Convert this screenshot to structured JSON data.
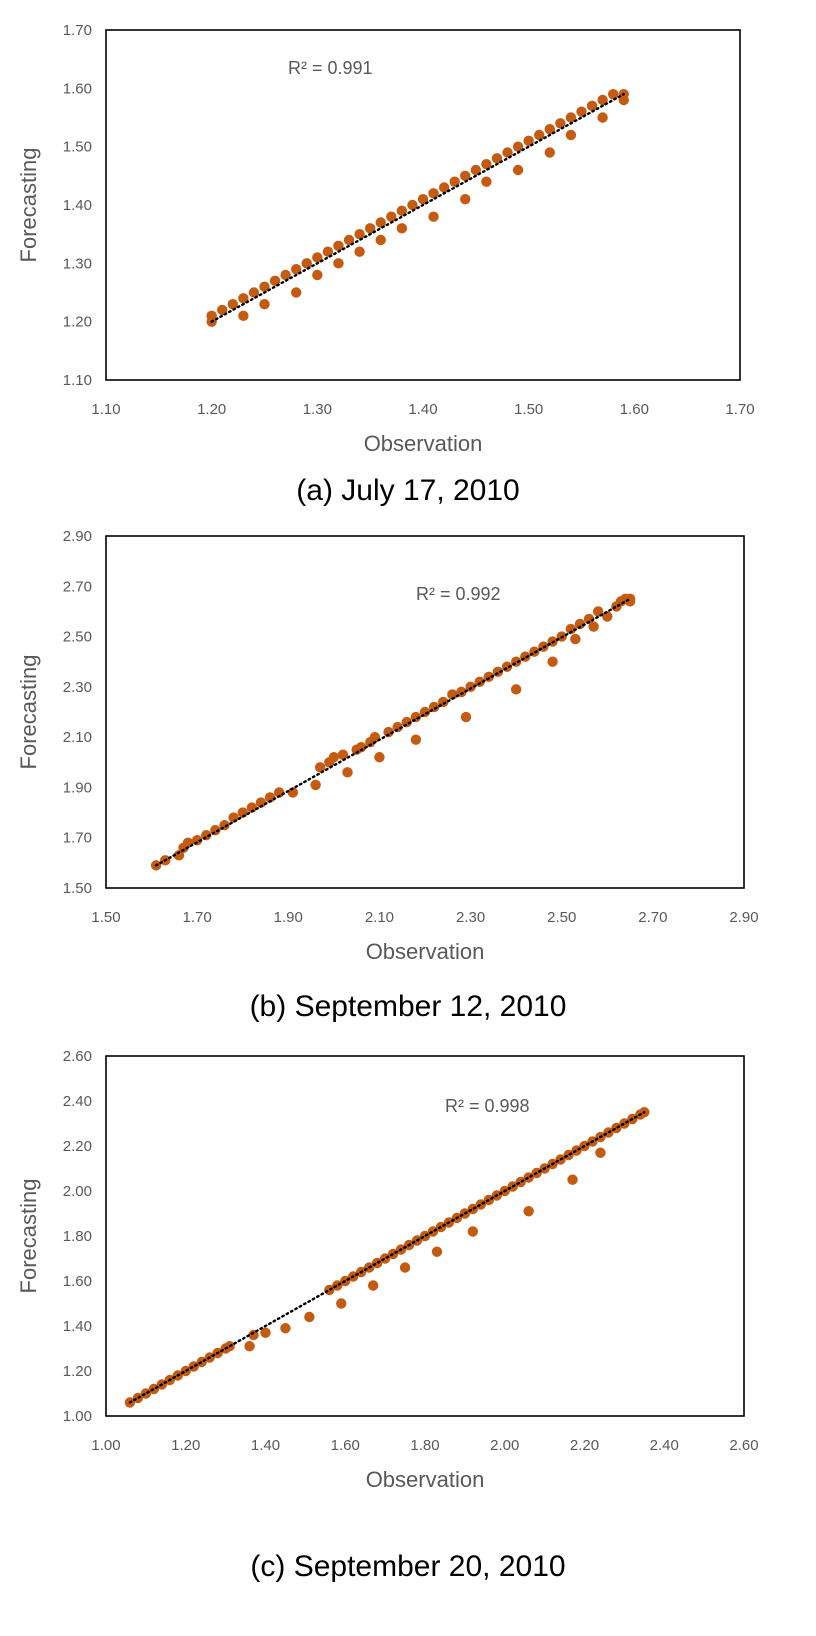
{
  "chart_data": [
    {
      "type": "scatter",
      "caption": "(a)  July  17,  2010",
      "xlabel": "Observation",
      "ylabel": "Forecasting",
      "xlim": [
        1.1,
        1.7
      ],
      "ylim": [
        1.1,
        1.7
      ],
      "xticks": [
        "1.10",
        "1.20",
        "1.30",
        "1.40",
        "1.50",
        "1.60",
        "1.70"
      ],
      "yticks": [
        "1.10",
        "1.20",
        "1.30",
        "1.40",
        "1.50",
        "1.60",
        "1.70"
      ],
      "r2_label": "R² = 0.991",
      "trendline": [
        [
          1.2,
          1.2
        ],
        [
          1.59,
          1.59
        ]
      ],
      "marker_color": "#C55A11",
      "series": [
        {
          "x": [
            1.2,
            1.2,
            1.21,
            1.22,
            1.23,
            1.23,
            1.24,
            1.25,
            1.25,
            1.26,
            1.27,
            1.28,
            1.28,
            1.29,
            1.3,
            1.3,
            1.31,
            1.32,
            1.32,
            1.33,
            1.34,
            1.34,
            1.35,
            1.36,
            1.36,
            1.37,
            1.38,
            1.38,
            1.39,
            1.4,
            1.41,
            1.41,
            1.42,
            1.43,
            1.44,
            1.44,
            1.45,
            1.46,
            1.46,
            1.47,
            1.48,
            1.49,
            1.49,
            1.5,
            1.51,
            1.52,
            1.52,
            1.53,
            1.54,
            1.54,
            1.55,
            1.56,
            1.57,
            1.57,
            1.58,
            1.59,
            1.59
          ],
          "y": [
            1.2,
            1.21,
            1.22,
            1.23,
            1.24,
            1.21,
            1.25,
            1.26,
            1.23,
            1.27,
            1.28,
            1.29,
            1.25,
            1.3,
            1.31,
            1.28,
            1.32,
            1.33,
            1.3,
            1.34,
            1.35,
            1.32,
            1.36,
            1.37,
            1.34,
            1.38,
            1.39,
            1.36,
            1.4,
            1.41,
            1.42,
            1.38,
            1.43,
            1.44,
            1.45,
            1.41,
            1.46,
            1.47,
            1.44,
            1.48,
            1.49,
            1.5,
            1.46,
            1.51,
            1.52,
            1.53,
            1.49,
            1.54,
            1.55,
            1.52,
            1.56,
            1.57,
            1.58,
            1.55,
            1.59,
            1.59,
            1.58
          ]
        }
      ]
    },
    {
      "type": "scatter",
      "caption": "(b)  September  12,  2010",
      "xlabel": "Observation",
      "ylabel": "Forecasting",
      "xlim": [
        1.5,
        2.9
      ],
      "ylim": [
        1.5,
        2.9
      ],
      "xticks": [
        "1.50",
        "1.70",
        "1.90",
        "2.10",
        "2.30",
        "2.50",
        "2.70",
        "2.90"
      ],
      "yticks": [
        "1.50",
        "1.70",
        "1.90",
        "2.10",
        "2.30",
        "2.50",
        "2.70",
        "2.90"
      ],
      "r2_label": "R² = 0.992",
      "trendline": [
        [
          1.61,
          1.59
        ],
        [
          2.65,
          2.65
        ]
      ],
      "marker_color": "#C55A11",
      "series": [
        {
          "x": [
            1.61,
            1.63,
            1.66,
            1.67,
            1.68,
            1.7,
            1.72,
            1.74,
            1.76,
            1.78,
            1.8,
            1.82,
            1.84,
            1.86,
            1.88,
            1.91,
            1.96,
            1.97,
            1.99,
            2.0,
            2.02,
            2.03,
            2.05,
            2.06,
            2.08,
            2.09,
            2.1,
            2.12,
            2.14,
            2.16,
            2.18,
            2.18,
            2.2,
            2.22,
            2.24,
            2.26,
            2.28,
            2.29,
            2.3,
            2.32,
            2.34,
            2.36,
            2.38,
            2.4,
            2.4,
            2.42,
            2.44,
            2.46,
            2.48,
            2.48,
            2.5,
            2.52,
            2.53,
            2.54,
            2.56,
            2.57,
            2.58,
            2.6,
            2.62,
            2.63,
            2.64,
            2.65,
            2.65
          ],
          "y": [
            1.59,
            1.61,
            1.63,
            1.66,
            1.68,
            1.69,
            1.71,
            1.73,
            1.75,
            1.78,
            1.8,
            1.82,
            1.84,
            1.86,
            1.88,
            1.88,
            1.91,
            1.98,
            2.0,
            2.02,
            2.03,
            1.96,
            2.05,
            2.06,
            2.08,
            2.1,
            2.02,
            2.12,
            2.14,
            2.16,
            2.18,
            2.09,
            2.2,
            2.22,
            2.24,
            2.27,
            2.28,
            2.18,
            2.3,
            2.32,
            2.34,
            2.36,
            2.38,
            2.4,
            2.29,
            2.42,
            2.44,
            2.46,
            2.48,
            2.4,
            2.5,
            2.53,
            2.49,
            2.55,
            2.57,
            2.54,
            2.6,
            2.58,
            2.62,
            2.64,
            2.65,
            2.65,
            2.64
          ]
        }
      ]
    },
    {
      "type": "scatter",
      "caption": "(c)  September  20,  2010",
      "xlabel": "Observation",
      "ylabel": "Forecasting",
      "xlim": [
        1.0,
        2.6
      ],
      "ylim": [
        1.0,
        2.6
      ],
      "xticks": [
        "1.00",
        "1.20",
        "1.40",
        "1.60",
        "1.80",
        "2.00",
        "2.20",
        "2.40",
        "2.60"
      ],
      "yticks": [
        "1.00",
        "1.20",
        "1.40",
        "1.60",
        "1.80",
        "2.00",
        "2.20",
        "2.40",
        "2.60"
      ],
      "r2_label": "R² = 0.998",
      "trendline": [
        [
          1.06,
          1.06
        ],
        [
          2.35,
          2.35
        ]
      ],
      "marker_color": "#C55A11",
      "series": [
        {
          "x": [
            1.06,
            1.08,
            1.1,
            1.12,
            1.14,
            1.16,
            1.18,
            1.2,
            1.22,
            1.24,
            1.26,
            1.28,
            1.3,
            1.31,
            1.36,
            1.37,
            1.4,
            1.45,
            1.51,
            1.56,
            1.58,
            1.59,
            1.6,
            1.62,
            1.64,
            1.66,
            1.67,
            1.68,
            1.7,
            1.72,
            1.74,
            1.75,
            1.76,
            1.78,
            1.8,
            1.82,
            1.83,
            1.84,
            1.86,
            1.88,
            1.9,
            1.92,
            1.92,
            1.94,
            1.96,
            1.98,
            2.0,
            2.02,
            2.04,
            2.06,
            2.06,
            2.08,
            2.1,
            2.12,
            2.14,
            2.16,
            2.17,
            2.18,
            2.2,
            2.22,
            2.24,
            2.24,
            2.26,
            2.28,
            2.3,
            2.32,
            2.34,
            2.35
          ],
          "y": [
            1.06,
            1.08,
            1.1,
            1.12,
            1.14,
            1.16,
            1.18,
            1.2,
            1.22,
            1.24,
            1.26,
            1.28,
            1.3,
            1.31,
            1.31,
            1.36,
            1.37,
            1.39,
            1.44,
            1.56,
            1.58,
            1.5,
            1.6,
            1.62,
            1.64,
            1.66,
            1.58,
            1.68,
            1.7,
            1.72,
            1.74,
            1.66,
            1.76,
            1.78,
            1.8,
            1.82,
            1.73,
            1.84,
            1.86,
            1.88,
            1.9,
            1.92,
            1.82,
            1.94,
            1.96,
            1.98,
            2.0,
            2.02,
            2.04,
            2.06,
            1.91,
            2.08,
            2.1,
            2.12,
            2.14,
            2.16,
            2.05,
            2.18,
            2.2,
            2.22,
            2.24,
            2.17,
            2.26,
            2.28,
            2.3,
            2.32,
            2.34,
            2.35
          ]
        }
      ]
    }
  ]
}
